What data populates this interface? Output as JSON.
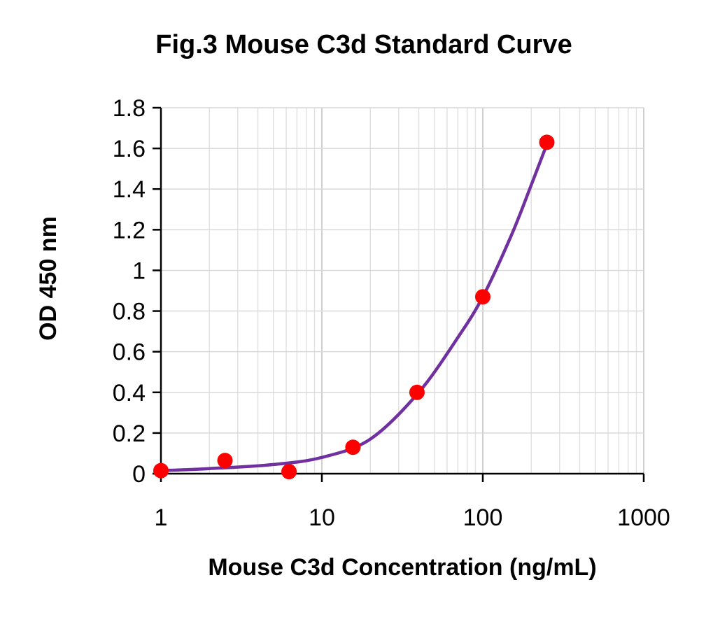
{
  "chart_data": {
    "type": "scatter",
    "title": "Fig.3 Mouse C3d Standard Curve",
    "xlabel": "Mouse C3d Concentration (ng/mL)",
    "ylabel": "OD 450 nm",
    "xscale": "log",
    "xlim": [
      1,
      1000
    ],
    "ylim": [
      0,
      1.8
    ],
    "x_ticks": [
      1,
      10,
      100,
      1000
    ],
    "x_tick_labels": [
      "1",
      "10",
      "100",
      "1000"
    ],
    "y_ticks": [
      0,
      0.2,
      0.4,
      0.6,
      0.8,
      1,
      1.2,
      1.4,
      1.6,
      1.8
    ],
    "y_tick_labels": [
      "0",
      "0.2",
      "0.4",
      "0.6",
      "0.8",
      "1",
      "1.2",
      "1.4",
      "1.6",
      "1.8"
    ],
    "grid": true,
    "legend": "none",
    "series": [
      {
        "kind": "points",
        "color": "#ff0000",
        "x": [
          1,
          2.5,
          6.25,
          15.6,
          39,
          100,
          250
        ],
        "y": [
          0.015,
          0.065,
          0.01,
          0.13,
          0.4,
          0.87,
          1.63
        ]
      },
      {
        "kind": "fit-curve",
        "color": "#7030a0",
        "x": [
          1,
          2,
          5,
          10,
          20,
          40,
          70,
          100,
          150,
          200,
          250
        ],
        "y": [
          0.015,
          0.025,
          0.045,
          0.08,
          0.17,
          0.4,
          0.67,
          0.87,
          1.17,
          1.42,
          1.62
        ]
      }
    ]
  }
}
